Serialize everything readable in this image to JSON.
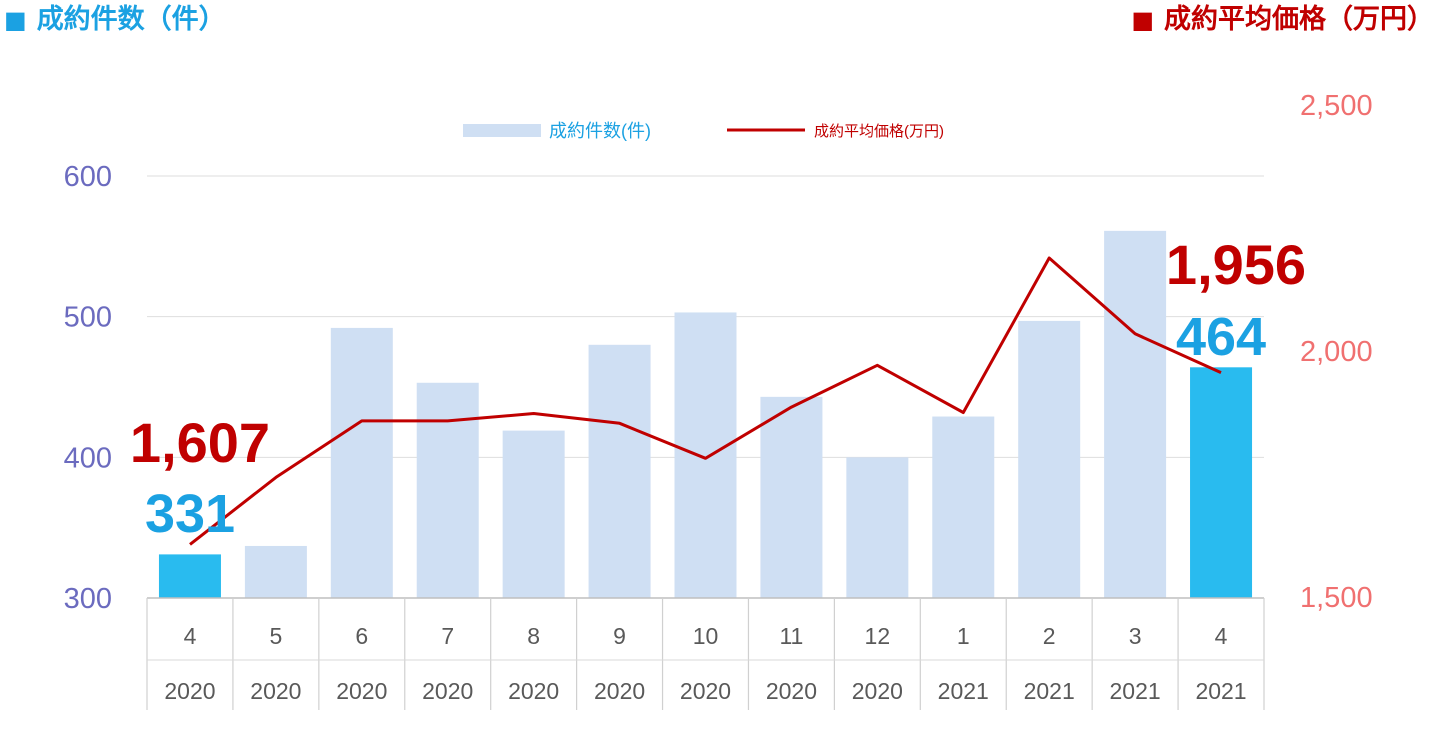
{
  "header": {
    "left_marker": "■",
    "left_title": "成約件数（件）",
    "right_marker": "■",
    "right_title": "成約平均価格（万円）"
  },
  "colors": {
    "bar": "#cfdff3",
    "bar_highlight": "#29bbef",
    "line": "#c00000",
    "left_axis": "#6b6bbf",
    "right_axis": "#f07070",
    "count_label": "#1ba1e2",
    "price_label": "#c00000"
  },
  "chart_data": {
    "type": "bar",
    "categories": [
      {
        "month": "4",
        "year": "2020"
      },
      {
        "month": "5",
        "year": "2020"
      },
      {
        "month": "6",
        "year": "2020"
      },
      {
        "month": "7",
        "year": "2020"
      },
      {
        "month": "8",
        "year": "2020"
      },
      {
        "month": "9",
        "year": "2020"
      },
      {
        "month": "10",
        "year": "2020"
      },
      {
        "month": "11",
        "year": "2020"
      },
      {
        "month": "12",
        "year": "2020"
      },
      {
        "month": "1",
        "year": "2021"
      },
      {
        "month": "2",
        "year": "2021"
      },
      {
        "month": "3",
        "year": "2021"
      },
      {
        "month": "4",
        "year": "2021"
      }
    ],
    "series": [
      {
        "name": "成約件数(件)",
        "type": "bar",
        "axis": "left",
        "values": [
          331,
          337,
          492,
          453,
          419,
          480,
          503,
          443,
          400,
          429,
          497,
          561,
          464
        ],
        "highlight": [
          0,
          12
        ]
      },
      {
        "name": "成約平均価格(万円)",
        "type": "line",
        "axis": "right",
        "values": [
          1607,
          1743,
          1858,
          1858,
          1873,
          1853,
          1782,
          1886,
          1971,
          1875,
          2189,
          2035,
          1956
        ]
      }
    ],
    "left_axis": {
      "min": 300,
      "max": 600,
      "ticks": [
        "300",
        "400",
        "500",
        "600"
      ]
    },
    "right_axis": {
      "min": 1500,
      "max": 2500,
      "ticks": [
        "1,500",
        "2,000",
        "2,500"
      ]
    },
    "annotations": [
      {
        "text": "1,607",
        "series": "price",
        "index": 0
      },
      {
        "text": "331",
        "series": "count",
        "index": 0
      },
      {
        "text": "1,956",
        "series": "price",
        "index": 12
      },
      {
        "text": "464",
        "series": "count",
        "index": 12
      }
    ],
    "legend": {
      "placement": "top-center"
    },
    "grid": true
  }
}
